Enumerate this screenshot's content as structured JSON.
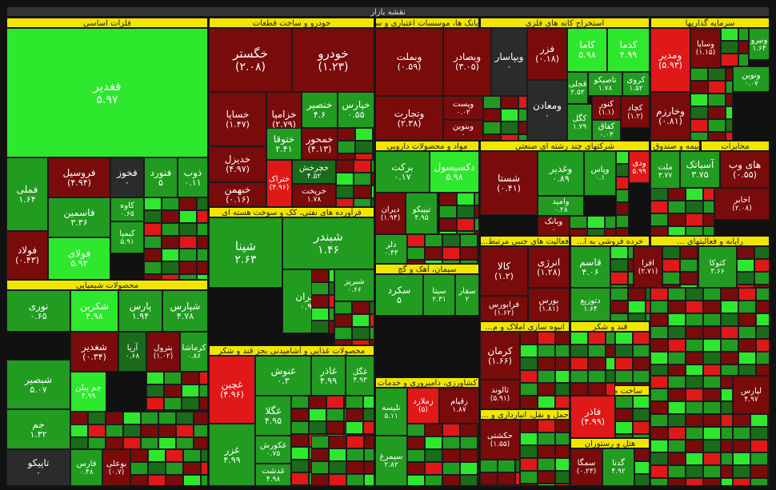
{
  "title": "نقشه بازار",
  "colors": {
    "bright_green": "#2ee82e",
    "green": "#219c21",
    "dark_green": "#1a6b1a",
    "dark_red": "#7a0b0b",
    "red": "#e01818",
    "neutral": "#2b2b2b",
    "header": "#f2e600"
  },
  "sectors": [
    "فلزات اساسی",
    "خودرو و ساخت قطعات",
    "بانک ها، موسسات اعتباری و سایر نهادهای...",
    "استخراج کانه های فلزی",
    "سرمایه گذاریها",
    "محصولات شیمیایی",
    "فرآورده های نفتی، کک و سوخت هسته ای",
    "مواد و محصولات دارویی",
    "شرکتهای چند رشته ای صنعتی",
    "بیمه و صندوق بازنشستگی...",
    "مخابرات",
    "سیمان، آهک و گچ",
    "محصولات غذایی و آشامیدنی بجز قند و شکر",
    "فعالیت های جنبی مرتبط...",
    "خرده فروشی به ا...",
    "رایانه و فعالیتهای ...",
    "انبوه سازی املاک و م...",
    "قند و شکر",
    "کشاورزی، دامپروری و خدمات",
    "ساخت محصولات...",
    "حمل و نقل، انبارداری و ...",
    "هتل و رستوران"
  ],
  "tiles": [
    {
      "name": "فغدیر",
      "value": "۵.۹۷"
    },
    {
      "name": "فملی",
      "value": "۱.۶۴"
    },
    {
      "name": "فولاد",
      "value": "(۰.۴۳)"
    },
    {
      "name": "فروسیل",
      "value": "(۴.۹۴)"
    },
    {
      "name": "فخوز",
      "value": "۰"
    },
    {
      "name": "فنورد",
      "value": "۵"
    },
    {
      "name": "ذوب",
      "value": "۰.۱۱"
    },
    {
      "name": "فاسمین",
      "value": "۳.۳۶"
    },
    {
      "name": "کاوه",
      "value": "۰.۶۵"
    },
    {
      "name": "فولای",
      "value": "۵.۹۲"
    },
    {
      "name": "کیمیا",
      "value": "۵.۹۱"
    },
    {
      "name": "خگستر",
      "value": "(۲.۰۸)"
    },
    {
      "name": "خودرو",
      "value": "(۱.۲۳)"
    },
    {
      "name": "خساپا",
      "value": "(۱.۴۷)"
    },
    {
      "name": "خزامیا",
      "value": "(۲.۷۹)"
    },
    {
      "name": "خنصیر",
      "value": "۴.۶"
    },
    {
      "name": "خپارس",
      "value": "۰.۵۵"
    },
    {
      "name": "ختوقا",
      "value": "۲.۴۱"
    },
    {
      "name": "خمحور",
      "value": "(۴.۱۳)"
    },
    {
      "name": "خدیزل",
      "value": "(۴.۹۷)"
    },
    {
      "name": "خبهمن",
      "value": "(۰.۱۶)"
    },
    {
      "name": "ختراک",
      "value": "(۴.۹۶)"
    },
    {
      "name": "خچرخش",
      "value": "۴.۵۲"
    },
    {
      "name": "خریخت",
      "value": "۱.۷۸"
    },
    {
      "name": "وبملت",
      "value": "(۰.۵۹)"
    },
    {
      "name": "وبصادر",
      "value": "(۳.۰۵)"
    },
    {
      "name": "وبپاسار",
      "value": "۰"
    },
    {
      "name": "وتجارت",
      "value": "(۲.۳۸)"
    },
    {
      "name": "وپست",
      "value": "۰.۰۲"
    },
    {
      "name": "وبنوین",
      "value": "۰"
    },
    {
      "name": "ومعادن",
      "value": "۰"
    },
    {
      "name": "فزر",
      "value": "(۰.۱۸)"
    },
    {
      "name": "کاما",
      "value": "۵.۹۸"
    },
    {
      "name": "کدما",
      "value": "۴.۹۹"
    },
    {
      "name": "کچاد",
      "value": "(۱.۲)"
    },
    {
      "name": "کروی",
      "value": "۱.۵۲"
    },
    {
      "name": "تاصیکو",
      "value": "۱.۷۸"
    },
    {
      "name": "فجلی",
      "value": "۲.۵۲"
    },
    {
      "name": "کنور",
      "value": "(۱.۱)"
    },
    {
      "name": "کگل",
      "value": "۱.۷۹"
    },
    {
      "name": "کفاق",
      "value": "۰.۰۳"
    },
    {
      "name": "ومدیر",
      "value": "(۵.۹۳)"
    },
    {
      "name": "وساپا",
      "value": "(۱.۱۵)"
    },
    {
      "name": "وخارزم",
      "value": "(۰.۸۱)"
    },
    {
      "name": "ونیرو",
      "value": "۱.۶۴"
    },
    {
      "name": "نوری",
      "value": "۰.۶۵"
    },
    {
      "name": "شکربن",
      "value": "۴.۹۸"
    },
    {
      "name": "پارس",
      "value": "۱.۹۴"
    },
    {
      "name": "شپارس",
      "value": "۴.۷۸"
    },
    {
      "name": "شغدیر",
      "value": "(۰.۳۴)"
    },
    {
      "name": "آریا",
      "value": "۰.۶۸"
    },
    {
      "name": "پترول",
      "value": "(۱.۰۲)"
    },
    {
      "name": "کرماشا",
      "value": "۰.۸۶"
    },
    {
      "name": "شبصیر",
      "value": "۵.۰۷"
    },
    {
      "name": "جم",
      "value": "۱.۳۲"
    },
    {
      "name": "جم پیلن",
      "value": "۴.۹۹"
    },
    {
      "name": "تاپیکو",
      "value": "۰"
    },
    {
      "name": "فارس",
      "value": "۰.۴۸"
    },
    {
      "name": "بوعلی",
      "value": "(۰.۷)"
    },
    {
      "name": "شپنا",
      "value": "۲.۶۳"
    },
    {
      "name": "شبندر",
      "value": "۱.۴۶"
    },
    {
      "name": "شتران",
      "value": "۰.۹۴"
    },
    {
      "name": "شبریز",
      "value": "۰.۶۶"
    },
    {
      "name": "برکت",
      "value": "۰.۱۷"
    },
    {
      "name": "دکسیسول",
      "value": "۵.۹۸"
    },
    {
      "name": "دیران",
      "value": "(۱.۹۴)"
    },
    {
      "name": "تیپیکو",
      "value": "۴.۹۵"
    },
    {
      "name": "دلر",
      "value": "۰.۴۴"
    },
    {
      "name": "شستا",
      "value": "(۰.۴۱)"
    },
    {
      "name": "وغدیر",
      "value": "۰.۸۹"
    },
    {
      "name": "وپاس",
      "value": "۰.۱"
    },
    {
      "name": "وامید",
      "value": "۰.۲۸"
    },
    {
      "name": "وبانک",
      "value": "۰"
    },
    {
      "name": "ودی",
      "value": "۵.۹۹"
    },
    {
      "name": "ملت",
      "value": "۳.۷۷"
    },
    {
      "name": "اخابر",
      "value": "(۲.۰۸)"
    },
    {
      "name": "آسیاتک",
      "value": "۳.۷۵"
    },
    {
      "name": "های وب",
      "value": "(۰.۵۵)"
    },
    {
      "name": "غچین",
      "value": "(۴.۹۶)"
    },
    {
      "name": "غنوش",
      "value": "۰.۳"
    },
    {
      "name": "غاذر",
      "value": "۴.۹۹"
    },
    {
      "name": "غگل",
      "value": "۴.۹۳"
    },
    {
      "name": "غزر",
      "value": "۴.۹۹"
    },
    {
      "name": "غگلا",
      "value": "۴.۹۵"
    },
    {
      "name": "غکورش",
      "value": "۰.۷۵"
    },
    {
      "name": "غدشت",
      "value": "۴.۹۸"
    },
    {
      "name": "سکرد",
      "value": "۵"
    },
    {
      "name": "سیتا",
      "value": "۲.۳۱"
    },
    {
      "name": "سفار",
      "value": "۲"
    },
    {
      "name": "کالا",
      "value": "(۱.۲)"
    },
    {
      "name": "انرژی",
      "value": "(۱.۲۸)"
    },
    {
      "name": "قاسم",
      "value": "۴.۰۶"
    },
    {
      "name": "فرابورس",
      "value": "(۱.۶۲)"
    },
    {
      "name": "بورس",
      "value": "(۱.۸۱)"
    },
    {
      "name": "دتوزیع",
      "value": "۱.۶۴"
    },
    {
      "name": "افرا",
      "value": "(۲.۷۱)"
    },
    {
      "name": "کتوکا",
      "value": "۳.۶۶"
    },
    {
      "name": "کرمان",
      "value": "(۱.۶۶)"
    },
    {
      "name": "ثالوند",
      "value": "(۵.۹۱)"
    },
    {
      "name": "حکشتی",
      "value": "(۱.۵۵)"
    },
    {
      "name": "زملارد",
      "value": "(۵)"
    },
    {
      "name": "زقیام",
      "value": "۱.۸۷"
    },
    {
      "name": "تلیسه",
      "value": "۵.۱۱"
    },
    {
      "name": "سیمرغ",
      "value": "۲.۸۲"
    },
    {
      "name": "فاذر",
      "value": "(۴.۹۹)"
    },
    {
      "name": "سمگا",
      "value": "(۰.۲۳)"
    },
    {
      "name": "گدنا",
      "value": "۴.۹۲"
    },
    {
      "name": "لپارس",
      "value": "۴.۹۷"
    },
    {
      "name": "ونوین",
      "value": "۰.۰۷"
    }
  ]
}
